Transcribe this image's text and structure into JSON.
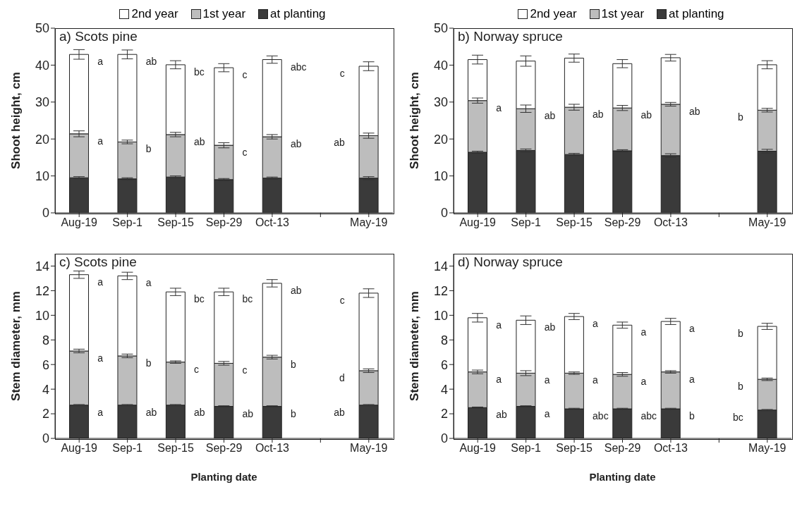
{
  "chart_data": [
    {
      "type": "bar",
      "stacked": true,
      "title": "a) Scots pine",
      "ylabel": "Shoot height, cm",
      "legend": "top",
      "categories": [
        "Aug-19",
        "Sep-1",
        "Sep-15",
        "Sep-29",
        "Oct-13",
        null,
        "May-19"
      ],
      "ylim": [
        0,
        50
      ],
      "yticks": [
        0,
        10,
        20,
        30,
        40,
        50
      ],
      "series": [
        {
          "name": "at planting",
          "color": "#3a3a3a",
          "values": [
            9.5,
            9.2,
            9.7,
            9.0,
            9.4,
            null,
            9.4
          ],
          "errors": [
            0.3,
            0.3,
            0.3,
            0.3,
            0.3,
            null,
            0.4
          ]
        },
        {
          "name": "1st year",
          "color": "#bdbdbd",
          "values": [
            11.9,
            10.0,
            11.5,
            9.3,
            11.2,
            null,
            11.5
          ],
          "errors": [
            0.8,
            0.5,
            0.6,
            0.7,
            0.6,
            null,
            0.7
          ]
        },
        {
          "name": "2nd year",
          "color": "#ffffff",
          "values": [
            21.5,
            23.7,
            18.9,
            21.0,
            20.9,
            null,
            18.8
          ],
          "errors": [
            1.3,
            1.2,
            1.1,
            1.1,
            1.0,
            null,
            1.2
          ]
        }
      ],
      "annotations": [
        {
          "text": "a",
          "x": "Aug-19",
          "y": 42.9
        },
        {
          "text": "ab",
          "x": "Sep-1",
          "y": 42.9
        },
        {
          "text": "bc",
          "x": "Sep-15",
          "y": 40.1
        },
        {
          "text": "c",
          "x": "Sep-29",
          "y": 39.3
        },
        {
          "text": "abc",
          "x": "Oct-13",
          "y": 41.5
        },
        {
          "text": "c",
          "x": "May-19",
          "y": 39.7
        },
        {
          "text": "a",
          "x": "Aug-19",
          "y": 21.4
        },
        {
          "text": "b",
          "x": "Sep-1",
          "y": 19.2
        },
        {
          "text": "ab",
          "x": "Sep-15",
          "y": 21.2
        },
        {
          "text": "c",
          "x": "Sep-29",
          "y": 18.3
        },
        {
          "text": "ab",
          "x": "Oct-13",
          "y": 20.6
        },
        {
          "text": "ab",
          "x": "May-19",
          "y": 20.9
        }
      ]
    },
    {
      "type": "bar",
      "stacked": true,
      "title": "b) Norway spruce",
      "ylabel": "Shoot height, cm",
      "legend": "top",
      "categories": [
        "Aug-19",
        "Sep-1",
        "Sep-15",
        "Sep-29",
        "Oct-13",
        null,
        "May-19"
      ],
      "ylim": [
        0,
        50
      ],
      "yticks": [
        0,
        10,
        20,
        30,
        40,
        50
      ],
      "series": [
        {
          "name": "at planting",
          "color": "#3a3a3a",
          "values": [
            16.4,
            16.9,
            15.8,
            16.8,
            15.5,
            null,
            16.7
          ],
          "errors": [
            0.3,
            0.4,
            0.3,
            0.3,
            0.5,
            null,
            0.5
          ]
        },
        {
          "name": "1st year",
          "color": "#bdbdbd",
          "values": [
            14.0,
            11.3,
            12.8,
            11.6,
            13.9,
            null,
            11.1
          ],
          "errors": [
            0.7,
            1.0,
            0.8,
            0.7,
            0.5,
            null,
            0.5
          ]
        },
        {
          "name": "2nd year",
          "color": "#ffffff",
          "values": [
            11.1,
            12.9,
            13.3,
            12.0,
            12.6,
            null,
            12.3
          ],
          "errors": [
            1.2,
            1.4,
            1.1,
            1.1,
            0.9,
            null,
            1.1
          ]
        }
      ],
      "annotations": [
        {
          "text": "a",
          "x": "Aug-19",
          "y": 30.4
        },
        {
          "text": "ab",
          "x": "Sep-1",
          "y": 28.2
        },
        {
          "text": "ab",
          "x": "Sep-15",
          "y": 28.6
        },
        {
          "text": "ab",
          "x": "Sep-29",
          "y": 28.4
        },
        {
          "text": "ab",
          "x": "Oct-13",
          "y": 29.4
        },
        {
          "text": "b",
          "x": "May-19",
          "y": 27.8
        }
      ]
    },
    {
      "type": "bar",
      "stacked": true,
      "title": "c) Scots pine",
      "ylabel": "Stem diameter, mm",
      "xlabel": "Planting date",
      "categories": [
        "Aug-19",
        "Sep-1",
        "Sep-15",
        "Sep-29",
        "Oct-13",
        null,
        "May-19"
      ],
      "ylim": [
        0,
        15
      ],
      "yticks": [
        0,
        2,
        4,
        6,
        8,
        10,
        12,
        14
      ],
      "series": [
        {
          "color": "#3a3a3a",
          "values": [
            2.7,
            2.7,
            2.7,
            2.6,
            2.6,
            null,
            2.7
          ],
          "errors": [
            0.05,
            0.05,
            0.05,
            0.05,
            0.05,
            null,
            0.05
          ]
        },
        {
          "color": "#bdbdbd",
          "values": [
            4.4,
            4.0,
            3.5,
            3.5,
            4.0,
            null,
            2.8
          ],
          "errors": [
            0.15,
            0.15,
            0.1,
            0.15,
            0.15,
            null,
            0.15
          ]
        },
        {
          "color": "#ffffff",
          "values": [
            6.2,
            6.5,
            5.7,
            5.8,
            6.0,
            null,
            6.3
          ],
          "errors": [
            0.3,
            0.3,
            0.3,
            0.3,
            0.3,
            null,
            0.35
          ]
        }
      ],
      "annotations": [
        {
          "text": "a",
          "x": "Aug-19",
          "y": 13.3
        },
        {
          "text": "a",
          "x": "Sep-1",
          "y": 13.2
        },
        {
          "text": "bc",
          "x": "Sep-15",
          "y": 11.9
        },
        {
          "text": "bc",
          "x": "Sep-29",
          "y": 11.9
        },
        {
          "text": "ab",
          "x": "Oct-13",
          "y": 12.6
        },
        {
          "text": "c",
          "x": "May-19",
          "y": 11.8
        },
        {
          "text": "a",
          "x": "Aug-19",
          "y": 7.1
        },
        {
          "text": "b",
          "x": "Sep-1",
          "y": 6.7
        },
        {
          "text": "c",
          "x": "Sep-15",
          "y": 6.2
        },
        {
          "text": "c",
          "x": "Sep-29",
          "y": 6.1
        },
        {
          "text": "b",
          "x": "Oct-13",
          "y": 6.6
        },
        {
          "text": "d",
          "x": "May-19",
          "y": 5.5
        },
        {
          "text": "a",
          "x": "Aug-19",
          "y": 2.7
        },
        {
          "text": "ab",
          "x": "Sep-1",
          "y": 2.7
        },
        {
          "text": "ab",
          "x": "Sep-15",
          "y": 2.7
        },
        {
          "text": "ab",
          "x": "Sep-29",
          "y": 2.6
        },
        {
          "text": "b",
          "x": "Oct-13",
          "y": 2.6
        },
        {
          "text": "ab",
          "x": "May-19",
          "y": 2.7
        }
      ]
    },
    {
      "type": "bar",
      "stacked": true,
      "title": "d) Norway spruce",
      "ylabel": "Stem diameter, mm",
      "xlabel": "Planting date",
      "categories": [
        "Aug-19",
        "Sep-1",
        "Sep-15",
        "Sep-29",
        "Oct-13",
        null,
        "May-19"
      ],
      "ylim": [
        0,
        15
      ],
      "yticks": [
        0,
        2,
        4,
        6,
        8,
        10,
        12,
        14
      ],
      "series": [
        {
          "color": "#3a3a3a",
          "values": [
            2.5,
            2.6,
            2.4,
            2.4,
            2.4,
            null,
            2.3
          ],
          "errors": [
            0.05,
            0.05,
            0.05,
            0.05,
            0.05,
            null,
            0.05
          ]
        },
        {
          "color": "#bdbdbd",
          "values": [
            2.9,
            2.7,
            2.9,
            2.8,
            3.0,
            null,
            2.5
          ],
          "errors": [
            0.15,
            0.2,
            0.1,
            0.15,
            0.1,
            null,
            0.1
          ]
        },
        {
          "color": "#ffffff",
          "values": [
            4.4,
            4.3,
            4.6,
            4.0,
            4.1,
            null,
            4.3
          ],
          "errors": [
            0.35,
            0.35,
            0.25,
            0.25,
            0.25,
            null,
            0.25
          ]
        }
      ],
      "annotations": [
        {
          "text": "a",
          "x": "Aug-19",
          "y": 9.8
        },
        {
          "text": "ab",
          "x": "Sep-1",
          "y": 9.6
        },
        {
          "text": "a",
          "x": "Sep-15",
          "y": 9.9
        },
        {
          "text": "a",
          "x": "Sep-29",
          "y": 9.2
        },
        {
          "text": "a",
          "x": "Oct-13",
          "y": 9.5
        },
        {
          "text": "b",
          "x": "May-19",
          "y": 9.1
        },
        {
          "text": "a",
          "x": "Aug-19",
          "y": 5.4
        },
        {
          "text": "a",
          "x": "Sep-1",
          "y": 5.3
        },
        {
          "text": "a",
          "x": "Sep-15",
          "y": 5.3
        },
        {
          "text": "a",
          "x": "Sep-29",
          "y": 5.2
        },
        {
          "text": "a",
          "x": "Oct-13",
          "y": 5.4
        },
        {
          "text": "b",
          "x": "May-19",
          "y": 4.8
        },
        {
          "text": "ab",
          "x": "Aug-19",
          "y": 2.5
        },
        {
          "text": "a",
          "x": "Sep-1",
          "y": 2.6
        },
        {
          "text": "abc",
          "x": "Sep-15",
          "y": 2.4
        },
        {
          "text": "abc",
          "x": "Sep-29",
          "y": 2.4
        },
        {
          "text": "b",
          "x": "Oct-13",
          "y": 2.4
        },
        {
          "text": "bc",
          "x": "May-19",
          "y": 2.3
        }
      ]
    }
  ]
}
